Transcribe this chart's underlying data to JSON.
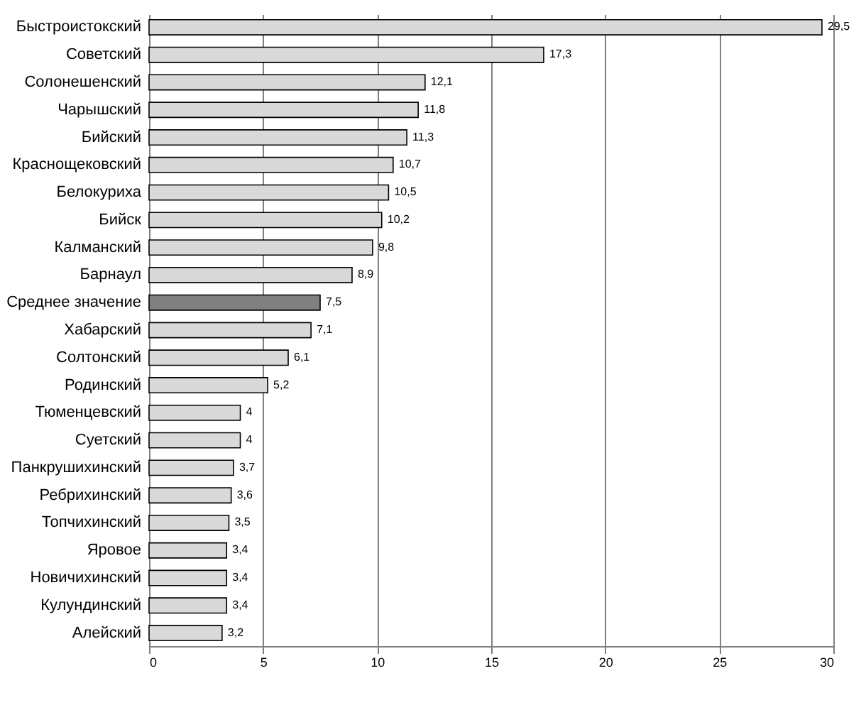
{
  "chart_data": {
    "type": "bar",
    "orientation": "horizontal",
    "categories": [
      "Быстроистокский",
      "Советский",
      "Солонешенский",
      "Чарышский",
      "Бийский",
      "Краснощековский",
      "Белокуриха",
      "Бийск",
      "Калманский",
      "Барнаул",
      "Среднее значение",
      "Хабарский",
      "Солтонский",
      "Родинский",
      "Тюменцевский",
      "Суетский",
      "Панкрушихинский",
      "Ребрихинский",
      "Топчихинский",
      "Яровое",
      "Новичихинский",
      "Кулундинский",
      "Алейский"
    ],
    "values": [
      29.5,
      17.3,
      12.1,
      11.8,
      11.3,
      10.7,
      10.5,
      10.2,
      9.8,
      8.9,
      7.5,
      7.1,
      6.1,
      5.2,
      4,
      4,
      3.7,
      3.6,
      3.5,
      3.4,
      3.4,
      3.4,
      3.2
    ],
    "value_labels": [
      "29,5",
      "17,3",
      "12,1",
      "11,8",
      "11,3",
      "10,7",
      "10,5",
      "10,2",
      "9,8",
      "8,9",
      "7,5",
      "7,1",
      "6,1",
      "5,2",
      "4",
      "4",
      "3,7",
      "3,6",
      "3,5",
      "3,4",
      "3,4",
      "3,4",
      "3,2"
    ],
    "colors": [
      "#d9d9d9",
      "#d9d9d9",
      "#d9d9d9",
      "#d9d9d9",
      "#d9d9d9",
      "#d9d9d9",
      "#d9d9d9",
      "#d9d9d9",
      "#d9d9d9",
      "#d9d9d9",
      "#808080",
      "#d9d9d9",
      "#d9d9d9",
      "#d9d9d9",
      "#d9d9d9",
      "#d9d9d9",
      "#d9d9d9",
      "#d9d9d9",
      "#d9d9d9",
      "#d9d9d9",
      "#d9d9d9",
      "#d9d9d9",
      "#d9d9d9"
    ],
    "xlim": [
      0,
      30
    ],
    "xticks": [
      0,
      5,
      10,
      15,
      20,
      25,
      30
    ],
    "grid": "x"
  }
}
